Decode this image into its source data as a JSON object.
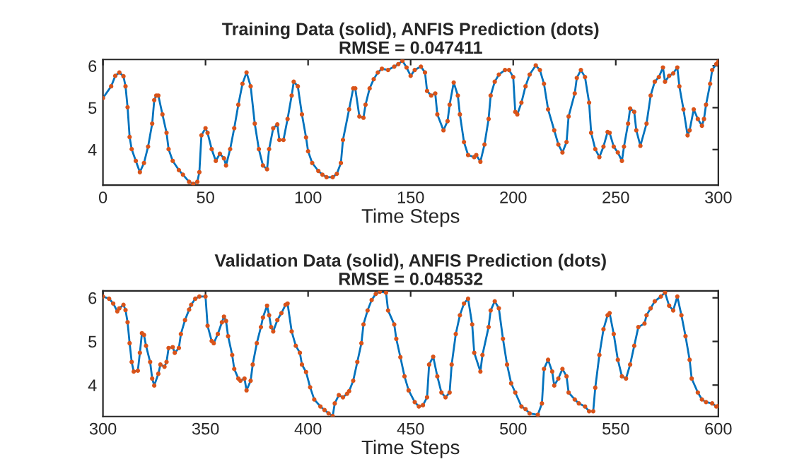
{
  "chart_data": [
    {
      "type": "line",
      "title": "Training Data (solid), ANFIS Prediction (dots)",
      "subtitle": "RMSE = 0.047411",
      "xlabel": "Time Steps",
      "xlim": [
        0,
        300
      ],
      "xticks": [
        0,
        50,
        100,
        150,
        200,
        250,
        300
      ],
      "ylim": [
        3.15,
        6.15
      ],
      "yticks": [
        4,
        5,
        6
      ],
      "grid": false,
      "legend": false,
      "x": [
        0,
        4,
        6,
        8,
        10,
        11,
        12,
        13,
        14,
        16,
        18,
        20,
        22,
        24,
        25,
        26,
        27,
        29,
        31,
        32,
        34,
        37,
        39,
        42,
        44,
        46,
        47,
        48,
        50,
        51,
        53,
        55,
        57,
        59,
        60,
        62,
        64,
        66,
        68,
        70,
        72,
        74,
        76,
        78,
        80,
        81,
        83,
        85,
        86,
        88,
        90,
        92,
        93,
        95,
        97,
        99,
        100,
        102,
        105,
        107,
        109,
        112,
        114,
        116,
        117,
        120,
        122,
        123,
        125,
        127,
        128,
        130,
        132,
        134,
        136,
        139,
        142,
        144,
        146,
        148,
        150,
        152,
        155,
        157,
        158,
        160,
        162,
        163,
        166,
        168,
        169,
        171,
        173,
        174,
        176,
        178,
        181,
        182,
        184,
        186,
        188,
        189,
        191,
        193,
        196,
        198,
        200,
        201,
        202,
        204,
        206,
        208,
        211,
        213,
        215,
        217,
        220,
        222,
        224,
        226,
        227,
        230,
        231,
        233,
        235,
        237,
        238,
        240,
        242,
        244,
        246,
        247,
        249,
        251,
        253,
        254,
        256,
        257,
        259,
        260,
        262,
        265,
        267,
        269,
        271,
        273,
        274,
        276,
        278,
        280,
        281,
        283,
        285,
        286,
        288,
        290,
        292,
        293,
        294,
        296,
        297,
        299,
        300
      ],
      "series": [
        {
          "color": "#0072bd",
          "line_style": "solid",
          "marker": "none",
          "values": [
            5.23,
            5.51,
            5.76,
            5.84,
            5.75,
            5.51,
            5.01,
            4.3,
            4.01,
            3.73,
            3.46,
            3.68,
            4.07,
            4.62,
            5.18,
            5.29,
            5.29,
            4.84,
            4.4,
            4.01,
            3.73,
            3.51,
            3.4,
            3.23,
            3.18,
            3.23,
            3.46,
            4.34,
            4.51,
            4.4,
            4.01,
            3.73,
            3.9,
            3.79,
            3.62,
            4.01,
            4.51,
            5.07,
            5.57,
            5.84,
            5.51,
            4.62,
            4.01,
            3.62,
            3.53,
            4.01,
            4.51,
            4.6,
            4.23,
            4.23,
            4.73,
            5.29,
            5.62,
            5.51,
            4.84,
            4.29,
            3.96,
            3.68,
            3.49,
            3.4,
            3.34,
            3.34,
            3.42,
            3.68,
            4.23,
            4.96,
            5.46,
            5.46,
            4.79,
            4.76,
            5.07,
            5.46,
            5.68,
            5.84,
            5.93,
            5.9,
            5.98,
            6.04,
            6.12,
            5.96,
            5.76,
            5.9,
            5.98,
            5.84,
            5.4,
            5.29,
            5.34,
            4.84,
            4.46,
            4.68,
            5.07,
            5.6,
            5.29,
            4.84,
            4.18,
            3.87,
            3.82,
            3.87,
            3.71,
            4.12,
            4.73,
            5.29,
            5.62,
            5.79,
            5.9,
            5.9,
            5.73,
            4.9,
            4.84,
            5.12,
            5.51,
            5.79,
            6.01,
            5.9,
            5.57,
            4.96,
            4.46,
            4.12,
            3.93,
            4.18,
            4.79,
            5.34,
            5.71,
            5.9,
            5.73,
            5.12,
            4.4,
            4.01,
            3.82,
            4.07,
            4.42,
            4.4,
            4.07,
            3.93,
            3.73,
            4.07,
            4.62,
            4.98,
            4.9,
            4.46,
            4.09,
            4.62,
            5.29,
            5.62,
            5.73,
            5.96,
            5.62,
            5.76,
            5.82,
            5.96,
            5.51,
            4.96,
            4.34,
            4.46,
            4.96,
            4.73,
            4.57,
            4.73,
            5.07,
            5.57,
            5.9,
            6.04,
            6.1
          ]
        },
        {
          "type": "scatter",
          "color": "#d95319",
          "marker": "circle",
          "values": [
            5.23,
            5.51,
            5.76,
            5.84,
            5.75,
            5.51,
            5.01,
            4.3,
            4.01,
            3.73,
            3.46,
            3.68,
            4.07,
            4.62,
            5.18,
            5.29,
            5.29,
            4.84,
            4.4,
            4.01,
            3.73,
            3.51,
            3.4,
            3.23,
            3.18,
            3.23,
            3.46,
            4.34,
            4.51,
            4.4,
            4.01,
            3.73,
            3.9,
            3.79,
            3.62,
            4.01,
            4.51,
            5.07,
            5.57,
            5.84,
            5.51,
            4.62,
            4.01,
            3.62,
            3.53,
            4.01,
            4.51,
            4.6,
            4.23,
            4.23,
            4.73,
            5.29,
            5.62,
            5.51,
            4.84,
            4.29,
            3.96,
            3.68,
            3.49,
            3.4,
            3.34,
            3.34,
            3.42,
            3.68,
            4.23,
            4.96,
            5.46,
            5.46,
            4.79,
            4.76,
            5.07,
            5.46,
            5.68,
            5.84,
            5.93,
            5.9,
            5.98,
            6.04,
            6.12,
            5.96,
            5.76,
            5.9,
            5.98,
            5.84,
            5.4,
            5.29,
            5.34,
            4.84,
            4.46,
            4.68,
            5.07,
            5.6,
            5.29,
            4.84,
            4.18,
            3.87,
            3.82,
            3.87,
            3.71,
            4.12,
            4.73,
            5.29,
            5.62,
            5.79,
            5.9,
            5.9,
            5.73,
            4.9,
            4.84,
            5.12,
            5.51,
            5.79,
            6.01,
            5.9,
            5.57,
            4.96,
            4.46,
            4.12,
            3.93,
            4.18,
            4.79,
            5.34,
            5.71,
            5.9,
            5.73,
            5.12,
            4.4,
            4.01,
            3.82,
            4.07,
            4.42,
            4.4,
            4.07,
            3.93,
            3.73,
            4.07,
            4.62,
            4.98,
            4.9,
            4.46,
            4.09,
            4.62,
            5.29,
            5.62,
            5.73,
            5.96,
            5.62,
            5.76,
            5.82,
            5.96,
            5.51,
            4.96,
            4.34,
            4.46,
            4.96,
            4.73,
            4.57,
            4.73,
            5.07,
            5.57,
            5.9,
            6.04,
            6.1
          ]
        }
      ]
    },
    {
      "type": "line",
      "title": "Validation Data (solid), ANFIS Prediction (dots)",
      "subtitle": "RMSE = 0.048532",
      "xlabel": "Time Steps",
      "xlim": [
        300,
        600
      ],
      "xticks": [
        300,
        350,
        400,
        450,
        500,
        550,
        600
      ],
      "ylim": [
        3.28,
        6.16
      ],
      "yticks": [
        4,
        5,
        6
      ],
      "grid": false,
      "legend": false,
      "x": [
        300,
        303,
        305,
        307,
        308,
        310,
        311,
        312,
        313,
        314,
        315,
        317,
        318,
        319,
        320,
        321,
        323,
        324,
        325,
        327,
        328,
        330,
        331,
        332,
        334,
        335,
        337,
        338,
        340,
        342,
        343,
        345,
        347,
        350,
        351,
        353,
        354,
        356,
        358,
        359,
        360,
        361,
        363,
        364,
        366,
        367,
        369,
        370,
        372,
        373,
        375,
        377,
        378,
        380,
        381,
        382,
        383,
        385,
        387,
        389,
        390,
        392,
        394,
        396,
        397,
        399,
        401,
        403,
        406,
        408,
        410,
        412,
        413,
        415,
        417,
        419,
        420,
        422,
        424,
        426,
        427,
        429,
        431,
        433,
        435,
        438,
        439,
        442,
        443,
        445,
        447,
        449,
        452,
        454,
        456,
        458,
        459,
        461,
        463,
        465,
        467,
        469,
        470,
        472,
        474,
        476,
        478,
        480,
        481,
        484,
        485,
        488,
        489,
        491,
        493,
        495,
        497,
        499,
        501,
        504,
        506,
        508,
        512,
        514,
        515,
        517,
        519,
        520,
        522,
        524,
        526,
        527,
        530,
        532,
        535,
        537,
        539,
        540,
        542,
        544,
        546,
        547,
        549,
        551,
        553,
        555,
        557,
        559,
        561,
        564,
        565,
        567,
        569,
        572,
        574,
        576,
        578,
        580,
        582,
        584,
        586,
        587,
        590,
        592,
        594,
        597,
        599,
        600
      ],
      "series": [
        {
          "color": "#0072bd",
          "line_style": "solid",
          "marker": "none",
          "values": [
            6.03,
            5.98,
            5.87,
            5.69,
            5.76,
            5.84,
            5.72,
            5.44,
            4.96,
            4.53,
            4.31,
            4.33,
            4.74,
            5.19,
            5.15,
            4.9,
            4.53,
            4.15,
            3.99,
            4.26,
            4.47,
            4.42,
            4.53,
            4.85,
            4.87,
            4.74,
            4.85,
            5.17,
            5.49,
            5.73,
            5.84,
            5.98,
            6.03,
            6.03,
            5.36,
            5.01,
            4.96,
            5.17,
            5.44,
            5.57,
            5.47,
            5.12,
            4.69,
            4.37,
            4.15,
            4.1,
            4.15,
            3.88,
            4.1,
            4.47,
            4.96,
            5.33,
            5.55,
            5.82,
            5.6,
            5.33,
            5.23,
            5.49,
            5.65,
            5.84,
            5.87,
            5.23,
            4.9,
            4.74,
            4.47,
            4.3,
            3.95,
            3.67,
            3.51,
            3.43,
            3.35,
            3.29,
            3.58,
            3.77,
            3.72,
            3.8,
            3.86,
            4.1,
            4.53,
            4.96,
            5.39,
            5.71,
            5.95,
            6.09,
            6.14,
            6.12,
            5.71,
            5.39,
            5.06,
            4.64,
            4.2,
            3.88,
            3.61,
            3.51,
            3.54,
            3.72,
            4.47,
            4.65,
            4.2,
            3.83,
            3.72,
            3.83,
            4.47,
            5.17,
            5.6,
            5.87,
            5.98,
            5.39,
            4.74,
            4.31,
            4.69,
            5.33,
            5.71,
            5.92,
            5.76,
            5.06,
            4.47,
            4.04,
            3.83,
            3.51,
            3.45,
            3.35,
            3.32,
            3.58,
            4.37,
            4.58,
            4.31,
            3.99,
            4.15,
            4.37,
            4.2,
            3.83,
            3.67,
            3.58,
            3.51,
            3.4,
            3.4,
            3.94,
            4.69,
            5.28,
            5.6,
            5.65,
            5.17,
            4.58,
            4.2,
            4.15,
            4.47,
            4.9,
            5.33,
            5.41,
            5.6,
            5.76,
            5.92,
            6.03,
            6.12,
            5.82,
            5.71,
            6.03,
            5.6,
            5.12,
            4.58,
            4.15,
            3.83,
            3.67,
            3.61,
            3.58,
            3.51,
            3.52
          ]
        },
        {
          "type": "scatter",
          "color": "#d95319",
          "marker": "circle",
          "values": [
            6.03,
            5.98,
            5.87,
            5.69,
            5.76,
            5.84,
            5.72,
            5.44,
            4.96,
            4.53,
            4.31,
            4.33,
            4.74,
            5.19,
            5.15,
            4.9,
            4.53,
            4.15,
            3.99,
            4.26,
            4.47,
            4.42,
            4.53,
            4.85,
            4.87,
            4.74,
            4.85,
            5.17,
            5.49,
            5.73,
            5.84,
            5.98,
            6.03,
            6.03,
            5.36,
            5.01,
            4.96,
            5.17,
            5.44,
            5.57,
            5.47,
            5.12,
            4.69,
            4.37,
            4.15,
            4.1,
            4.15,
            3.88,
            4.1,
            4.47,
            4.96,
            5.33,
            5.55,
            5.82,
            5.6,
            5.33,
            5.23,
            5.49,
            5.65,
            5.84,
            5.87,
            5.23,
            4.9,
            4.74,
            4.47,
            4.3,
            3.95,
            3.67,
            3.51,
            3.43,
            3.35,
            3.29,
            3.58,
            3.77,
            3.72,
            3.8,
            3.86,
            4.1,
            4.53,
            4.96,
            5.39,
            5.71,
            5.95,
            6.09,
            6.14,
            6.12,
            5.71,
            5.39,
            5.06,
            4.64,
            4.2,
            3.88,
            3.61,
            3.51,
            3.54,
            3.72,
            4.47,
            4.65,
            4.2,
            3.83,
            3.72,
            3.83,
            4.47,
            5.17,
            5.6,
            5.87,
            5.98,
            5.39,
            4.74,
            4.31,
            4.69,
            5.33,
            5.71,
            5.92,
            5.76,
            5.06,
            4.47,
            4.04,
            3.83,
            3.51,
            3.45,
            3.35,
            3.32,
            3.58,
            4.37,
            4.58,
            4.31,
            3.99,
            4.15,
            4.37,
            4.2,
            3.83,
            3.67,
            3.58,
            3.51,
            3.4,
            3.4,
            3.94,
            4.69,
            5.28,
            5.6,
            5.65,
            5.17,
            4.58,
            4.2,
            4.15,
            4.47,
            4.9,
            5.33,
            5.41,
            5.6,
            5.76,
            5.92,
            6.03,
            6.12,
            5.82,
            5.71,
            6.03,
            5.6,
            5.12,
            4.58,
            4.15,
            3.83,
            3.67,
            3.61,
            3.58,
            3.51,
            3.52
          ]
        }
      ]
    }
  ]
}
